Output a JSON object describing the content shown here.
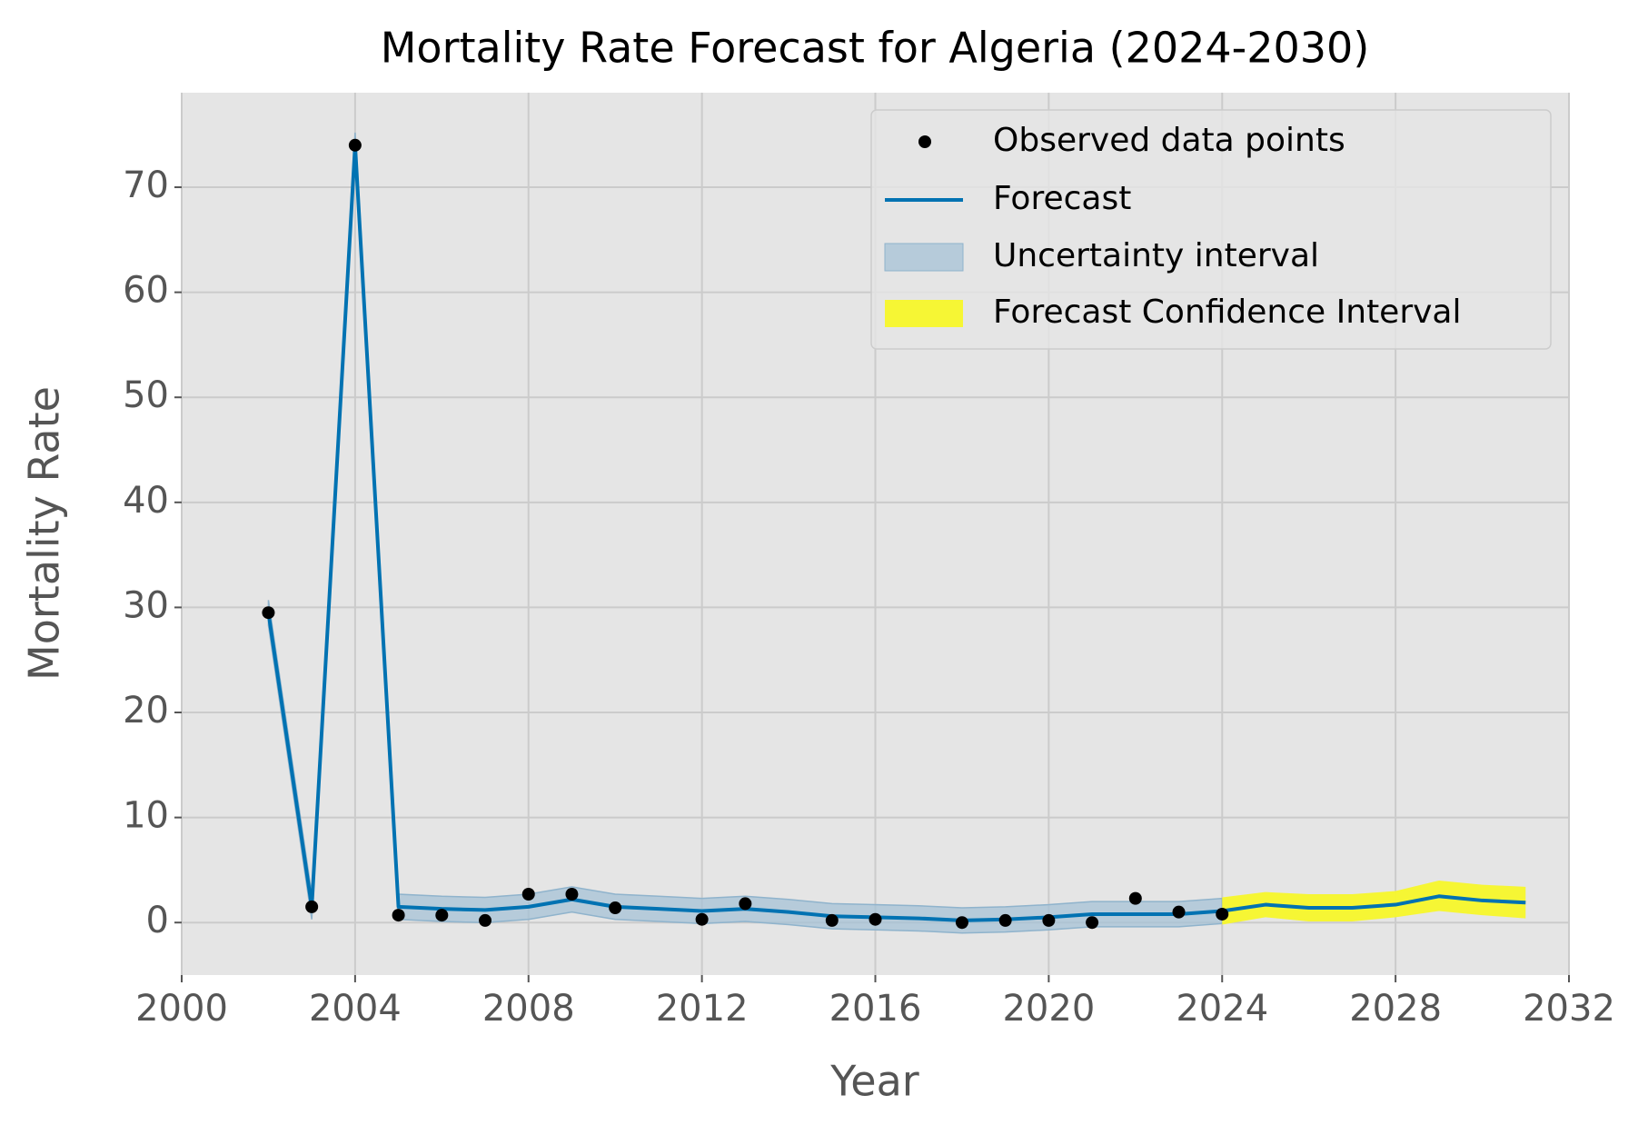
{
  "chart_data": {
    "type": "line",
    "title": "Mortality Rate Forecast for Algeria (2024-2030)",
    "x_label": "Year",
    "y_label": "Mortality Rate",
    "xlim": [
      2000,
      2032
    ],
    "xticks": [
      2000,
      2004,
      2008,
      2012,
      2016,
      2020,
      2024,
      2028,
      2032
    ],
    "ylim": [
      -5,
      79
    ],
    "yticks": [
      0,
      10,
      20,
      30,
      40,
      50,
      60,
      70
    ],
    "grid": true,
    "legend": "upper right",
    "series": [
      {
        "name": "Observed data points",
        "type": "scatter",
        "color": "#000000",
        "x": [
          2002,
          2003,
          2004,
          2005,
          2006,
          2007,
          2008,
          2009,
          2010,
          2012,
          2013,
          2015,
          2016,
          2018,
          2019,
          2020,
          2021,
          2022,
          2023,
          2024
        ],
        "values": [
          29.5,
          1.5,
          74,
          0.7,
          0.7,
          0.2,
          2.7,
          2.7,
          1.4,
          0.3,
          1.8,
          0.2,
          0.3,
          0.0,
          0.2,
          0.2,
          0.0,
          2.3,
          1.0,
          0.8
        ]
      },
      {
        "name": "Forecast",
        "type": "line",
        "color": "#0072b2",
        "x": [
          2002,
          2003,
          2004,
          2005,
          2006,
          2007,
          2008,
          2009,
          2010,
          2011,
          2012,
          2013,
          2014,
          2015,
          2016,
          2017,
          2018,
          2019,
          2020,
          2021,
          2022,
          2023,
          2024,
          2025,
          2026,
          2027,
          2028,
          2029,
          2030,
          2031
        ],
        "values": [
          29.5,
          1.5,
          74,
          1.5,
          1.3,
          1.2,
          1.5,
          2.2,
          1.5,
          1.3,
          1.1,
          1.3,
          1.0,
          0.6,
          0.5,
          0.4,
          0.2,
          0.3,
          0.5,
          0.8,
          0.8,
          0.8,
          1.1,
          1.7,
          1.4,
          1.4,
          1.7,
          2.5,
          2.1,
          1.9
        ]
      },
      {
        "name": "Uncertainty interval",
        "type": "band",
        "color": "#a3c1d6",
        "x": [
          2002,
          2003,
          2004,
          2005,
          2006,
          2007,
          2008,
          2009,
          2010,
          2011,
          2012,
          2013,
          2014,
          2015,
          2016,
          2017,
          2018,
          2019,
          2020,
          2021,
          2022,
          2023,
          2024
        ],
        "lower": [
          28.3,
          0.3,
          72.8,
          0.3,
          0.1,
          0,
          0.3,
          1.0,
          0.3,
          0.1,
          -0.1,
          0.1,
          -0.2,
          -0.6,
          -0.7,
          -0.8,
          -1.0,
          -0.9,
          -0.7,
          -0.4,
          -0.4,
          -0.4,
          -0.1
        ],
        "upper": [
          30.7,
          2.7,
          75.2,
          2.7,
          2.5,
          2.4,
          2.7,
          3.4,
          2.7,
          2.5,
          2.3,
          2.5,
          2.2,
          1.8,
          1.7,
          1.6,
          1.4,
          1.5,
          1.7,
          2.0,
          2.0,
          2.0,
          2.3
        ]
      },
      {
        "name": "Forecast Confidence Interval",
        "type": "band",
        "color": "#f7f72a",
        "x": [
          2024,
          2025,
          2026,
          2027,
          2028,
          2029,
          2030,
          2031
        ],
        "lower": [
          -0.2,
          0.5,
          0.1,
          0.1,
          0.5,
          1.1,
          0.7,
          0.4
        ],
        "upper": [
          2.4,
          2.9,
          2.7,
          2.7,
          3.0,
          4.0,
          3.6,
          3.4
        ]
      }
    ]
  }
}
